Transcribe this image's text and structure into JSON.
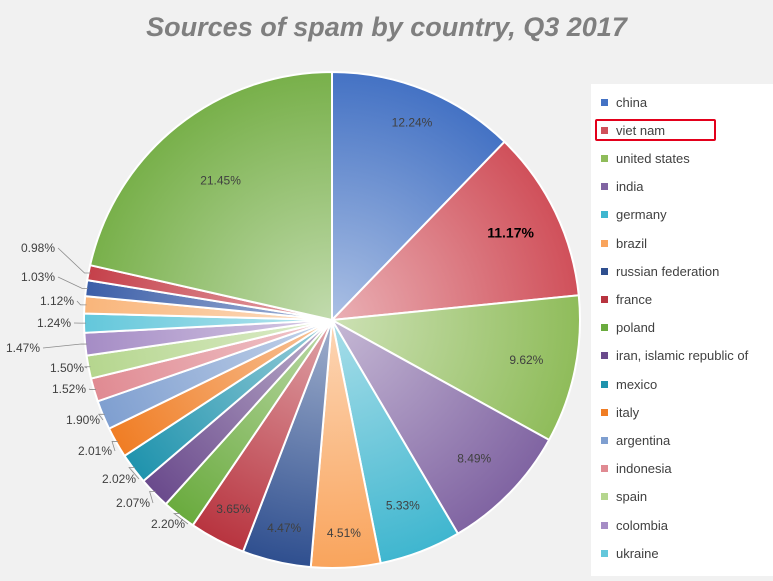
{
  "chart_data": {
    "type": "pie",
    "title": "Sources of spam by country, Q3 2017",
    "highlighted": "viet nam",
    "legend_position": "right",
    "start_angle_deg": 0,
    "direction": "clockwise",
    "categories": [
      "china",
      "viet nam",
      "united states",
      "india",
      "germany",
      "brazil",
      "russian federation",
      "france",
      "poland",
      "iran, islamic republic of",
      "mexico",
      "italy",
      "argentina",
      "indonesia",
      "spain",
      "colombia",
      "ukraine"
    ],
    "legend_categories": [
      "china",
      "viet nam",
      "united states",
      "india",
      "germany",
      "brazil",
      "russian federation",
      "france",
      "poland",
      "iran, islamic republic of",
      "mexico",
      "italy",
      "argentina",
      "indonesia",
      "spain",
      "colombia",
      "ukraine"
    ],
    "slices": [
      {
        "label": "china",
        "value": 12.24,
        "value_label": "12.24%",
        "color": "#4472c4"
      },
      {
        "label": "viet nam",
        "value": 11.17,
        "value_label": "11.17%",
        "color": "#d0505a"
      },
      {
        "label": "united states",
        "value": 9.62,
        "value_label": "9.62%",
        "color": "#8fbc5a"
      },
      {
        "label": "india",
        "value": 8.49,
        "value_label": "8.49%",
        "color": "#8064a2"
      },
      {
        "label": "germany",
        "value": 5.33,
        "value_label": "5.33%",
        "color": "#3fb6cf"
      },
      {
        "label": "brazil",
        "value": 4.51,
        "value_label": "4.51%",
        "color": "#f9a45c"
      },
      {
        "label": "russian federation",
        "value": 4.47,
        "value_label": "4.47%",
        "color": "#2f4f8f"
      },
      {
        "label": "france",
        "value": 3.65,
        "value_label": "3.65%",
        "color": "#b8343f"
      },
      {
        "label": "poland",
        "value": 2.2,
        "value_label": "2.20%",
        "color": "#6aab3e"
      },
      {
        "label": "iran, islamic republic of",
        "value": 2.07,
        "value_label": "2.07%",
        "color": "#6a4a8c"
      },
      {
        "label": "mexico",
        "value": 2.02,
        "value_label": "2.02%",
        "color": "#1f93ad"
      },
      {
        "label": "italy",
        "value": 2.01,
        "value_label": "2.01%",
        "color": "#f07d24"
      },
      {
        "label": "argentina",
        "value": 1.9,
        "value_label": "1.90%",
        "color": "#7f9fd0"
      },
      {
        "label": "indonesia",
        "value": 1.52,
        "value_label": "1.52%",
        "color": "#e08a92"
      },
      {
        "label": "spain",
        "value": 1.5,
        "value_label": "1.50%",
        "color": "#b5d68e"
      },
      {
        "label": "colombia",
        "value": 1.47,
        "value_label": "1.47%",
        "color": "#a58cc5"
      },
      {
        "label": "ukraine",
        "value": 1.24,
        "value_label": "1.24%",
        "color": "#63c7db"
      },
      {
        "label": "",
        "value": 1.12,
        "value_label": "1.12%",
        "color": "#f9b57a"
      },
      {
        "label": "",
        "value": 1.03,
        "value_label": "1.03%",
        "color": "#3b5ea8"
      },
      {
        "label": "",
        "value": 0.98,
        "value_label": "0.98%",
        "color": "#c5404a"
      },
      {
        "label": "",
        "value": 21.45,
        "value_label": "21.45%",
        "color": "#78b04a"
      }
    ]
  }
}
